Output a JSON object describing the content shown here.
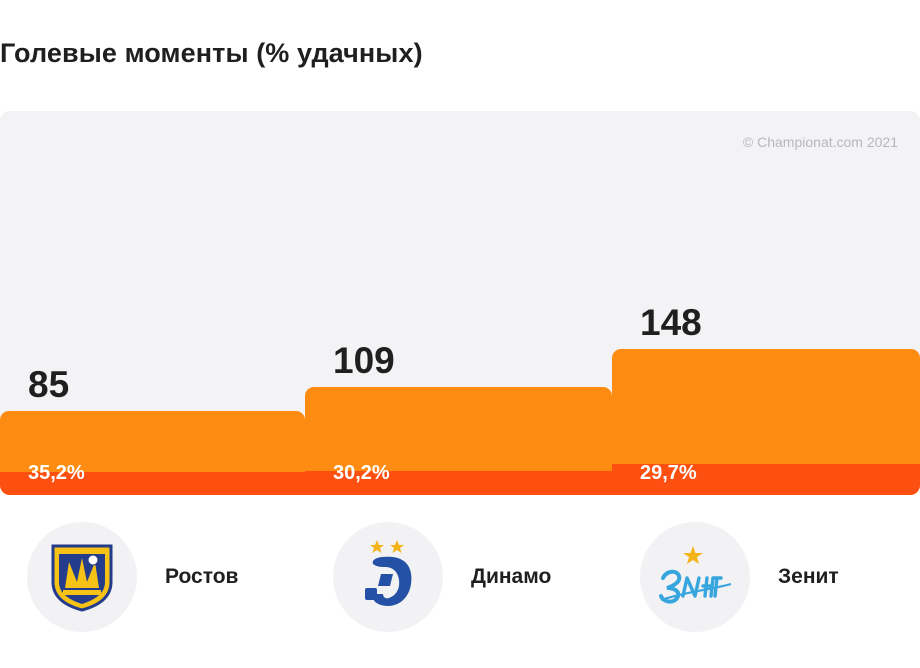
{
  "chart_data": {
    "type": "bar",
    "title": "Голевые моменты (% удачных)",
    "categories": [
      "Ростов",
      "Динамо",
      "Зенит"
    ],
    "series": [
      {
        "name": "",
        "values": [
          85,
          109,
          148
        ]
      },
      {
        "name": "",
        "values": [
          35.2,
          30.2,
          29.7
        ]
      }
    ],
    "value_labels": [
      "85",
      "109",
      "148"
    ],
    "percent_labels": [
      "35,2%",
      "30,2%",
      "29,7%"
    ],
    "colors": {
      "total": "#fe8c13",
      "success": "#fd4f0f",
      "background": "#f3f3f5"
    },
    "legend": "none",
    "grid": false,
    "copyright": "© Championat.com 2021"
  },
  "teams": [
    {
      "name": "Ростов",
      "logo": "fc-rostov-crest-icon"
    },
    {
      "name": "Динамо",
      "logo": "dynamo-moscow-logo-icon"
    },
    {
      "name": "Зенит",
      "logo": "zenit-logo-icon"
    }
  ]
}
